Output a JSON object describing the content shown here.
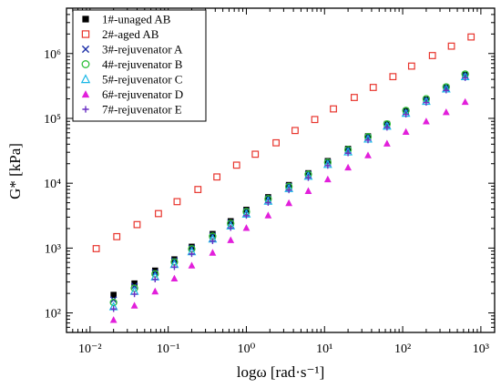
{
  "chart_data": {
    "type": "scatter",
    "xlabel": "logω [rad·s⁻¹]",
    "ylabel": "G* [kPa]",
    "x_scale": "log",
    "y_scale": "log",
    "xlim": [
      0.005,
      1500
    ],
    "ylim": [
      50,
      5000000
    ],
    "x_tick_labels": [
      "10⁻²",
      "10⁻¹",
      "10⁰",
      "10¹",
      "10²",
      "10³"
    ],
    "y_tick_labels": [
      "10²",
      "10³",
      "10⁴",
      "10⁵",
      "10⁶"
    ],
    "grid": false,
    "legend_position": "top-left",
    "series": [
      {
        "name": "1#-unaged AB",
        "marker": "filled-square",
        "color": "#000000",
        "points": [
          [
            0.02,
            190
          ],
          [
            0.037,
            285
          ],
          [
            0.068,
            450
          ],
          [
            0.12,
            670
          ],
          [
            0.2,
            1050
          ],
          [
            0.37,
            1650
          ],
          [
            0.63,
            2600
          ],
          [
            1.0,
            3900
          ],
          [
            1.9,
            6100
          ],
          [
            3.5,
            9400
          ],
          [
            6.2,
            14300
          ],
          [
            11,
            22000
          ],
          [
            20,
            34000
          ],
          [
            36,
            53000
          ],
          [
            63,
            82000
          ],
          [
            110,
            130000
          ],
          [
            200,
            195000
          ],
          [
            360,
            300000
          ],
          [
            630,
            470000
          ]
        ]
      },
      {
        "name": "2#-aged AB",
        "marker": "open-square",
        "color": "#e8352d",
        "points": [
          [
            0.012,
            980
          ],
          [
            0.022,
            1500
          ],
          [
            0.04,
            2300
          ],
          [
            0.075,
            3400
          ],
          [
            0.13,
            5200
          ],
          [
            0.24,
            8000
          ],
          [
            0.42,
            12500
          ],
          [
            0.75,
            19000
          ],
          [
            1.3,
            28000
          ],
          [
            2.4,
            42000
          ],
          [
            4.2,
            65000
          ],
          [
            7.5,
            96000
          ],
          [
            13,
            140000
          ],
          [
            24,
            210000
          ],
          [
            42,
            300000
          ],
          [
            75,
            440000
          ],
          [
            130,
            640000
          ],
          [
            240,
            930000
          ],
          [
            420,
            1300000
          ],
          [
            750,
            1800000
          ]
        ]
      },
      {
        "name": "3#-rejuvenator A",
        "marker": "x-cross",
        "color": "#1c2fa8",
        "points": [
          [
            0.02,
            160
          ],
          [
            0.037,
            260
          ],
          [
            0.068,
            420
          ],
          [
            0.12,
            640
          ],
          [
            0.2,
            1000
          ],
          [
            0.37,
            1550
          ],
          [
            0.63,
            2450
          ],
          [
            1.0,
            3700
          ],
          [
            1.9,
            5800
          ],
          [
            3.5,
            9000
          ],
          [
            6.2,
            13800
          ],
          [
            11,
            21000
          ],
          [
            20,
            32500
          ],
          [
            36,
            51000
          ],
          [
            63,
            79000
          ],
          [
            110,
            125000
          ],
          [
            200,
            190000
          ],
          [
            360,
            290000
          ],
          [
            630,
            450000
          ]
        ]
      },
      {
        "name": "4#-rejuvenator B",
        "marker": "open-circle",
        "color": "#2fbf3a",
        "points": [
          [
            0.02,
            145
          ],
          [
            0.037,
            240
          ],
          [
            0.068,
            400
          ],
          [
            0.12,
            610
          ],
          [
            0.2,
            970
          ],
          [
            0.37,
            1520
          ],
          [
            0.63,
            2400
          ],
          [
            1.0,
            3650
          ],
          [
            1.9,
            5750
          ],
          [
            3.5,
            8900
          ],
          [
            6.2,
            13700
          ],
          [
            11,
            21000
          ],
          [
            20,
            33000
          ],
          [
            36,
            52000
          ],
          [
            63,
            82000
          ],
          [
            110,
            132000
          ],
          [
            200,
            200000
          ],
          [
            360,
            305000
          ],
          [
            630,
            480000
          ]
        ]
      },
      {
        "name": "5#-rejuvenator C",
        "marker": "open-triangle",
        "color": "#19b7e6",
        "points": [
          [
            0.02,
            125
          ],
          [
            0.037,
            215
          ],
          [
            0.068,
            360
          ],
          [
            0.12,
            560
          ],
          [
            0.2,
            880
          ],
          [
            0.37,
            1380
          ],
          [
            0.63,
            2200
          ],
          [
            1.0,
            3350
          ],
          [
            1.9,
            5300
          ],
          [
            3.5,
            8300
          ],
          [
            6.2,
            12800
          ],
          [
            11,
            19500
          ],
          [
            20,
            30500
          ],
          [
            36,
            48000
          ],
          [
            63,
            76000
          ],
          [
            110,
            120000
          ],
          [
            200,
            183000
          ],
          [
            360,
            285000
          ],
          [
            630,
            440000
          ]
        ]
      },
      {
        "name": "6#-rejuvenator D",
        "marker": "filled-triangle",
        "color": "#e21fdb",
        "points": [
          [
            0.02,
            78
          ],
          [
            0.037,
            130
          ],
          [
            0.068,
            215
          ],
          [
            0.12,
            340
          ],
          [
            0.2,
            540
          ],
          [
            0.37,
            850
          ],
          [
            0.63,
            1330
          ],
          [
            1.0,
            2050
          ],
          [
            1.9,
            3200
          ],
          [
            3.5,
            4950
          ],
          [
            6.2,
            7600
          ],
          [
            11,
            11500
          ],
          [
            20,
            17500
          ],
          [
            36,
            27000
          ],
          [
            63,
            41000
          ],
          [
            110,
            62000
          ],
          [
            200,
            90000
          ],
          [
            360,
            125000
          ],
          [
            630,
            180000
          ]
        ]
      },
      {
        "name": "7#-rejuvenator E",
        "marker": "plus",
        "color": "#6a2fc4",
        "points": [
          [
            0.02,
            115
          ],
          [
            0.037,
            195
          ],
          [
            0.068,
            330
          ],
          [
            0.12,
            510
          ],
          [
            0.2,
            810
          ],
          [
            0.37,
            1280
          ],
          [
            0.63,
            2050
          ],
          [
            1.0,
            3150
          ],
          [
            1.9,
            5000
          ],
          [
            3.5,
            7800
          ],
          [
            6.2,
            12100
          ],
          [
            11,
            18600
          ],
          [
            20,
            29000
          ],
          [
            36,
            46000
          ],
          [
            63,
            72000
          ],
          [
            110,
            115000
          ],
          [
            200,
            175000
          ],
          [
            360,
            270000
          ],
          [
            630,
            420000
          ]
        ]
      }
    ]
  }
}
